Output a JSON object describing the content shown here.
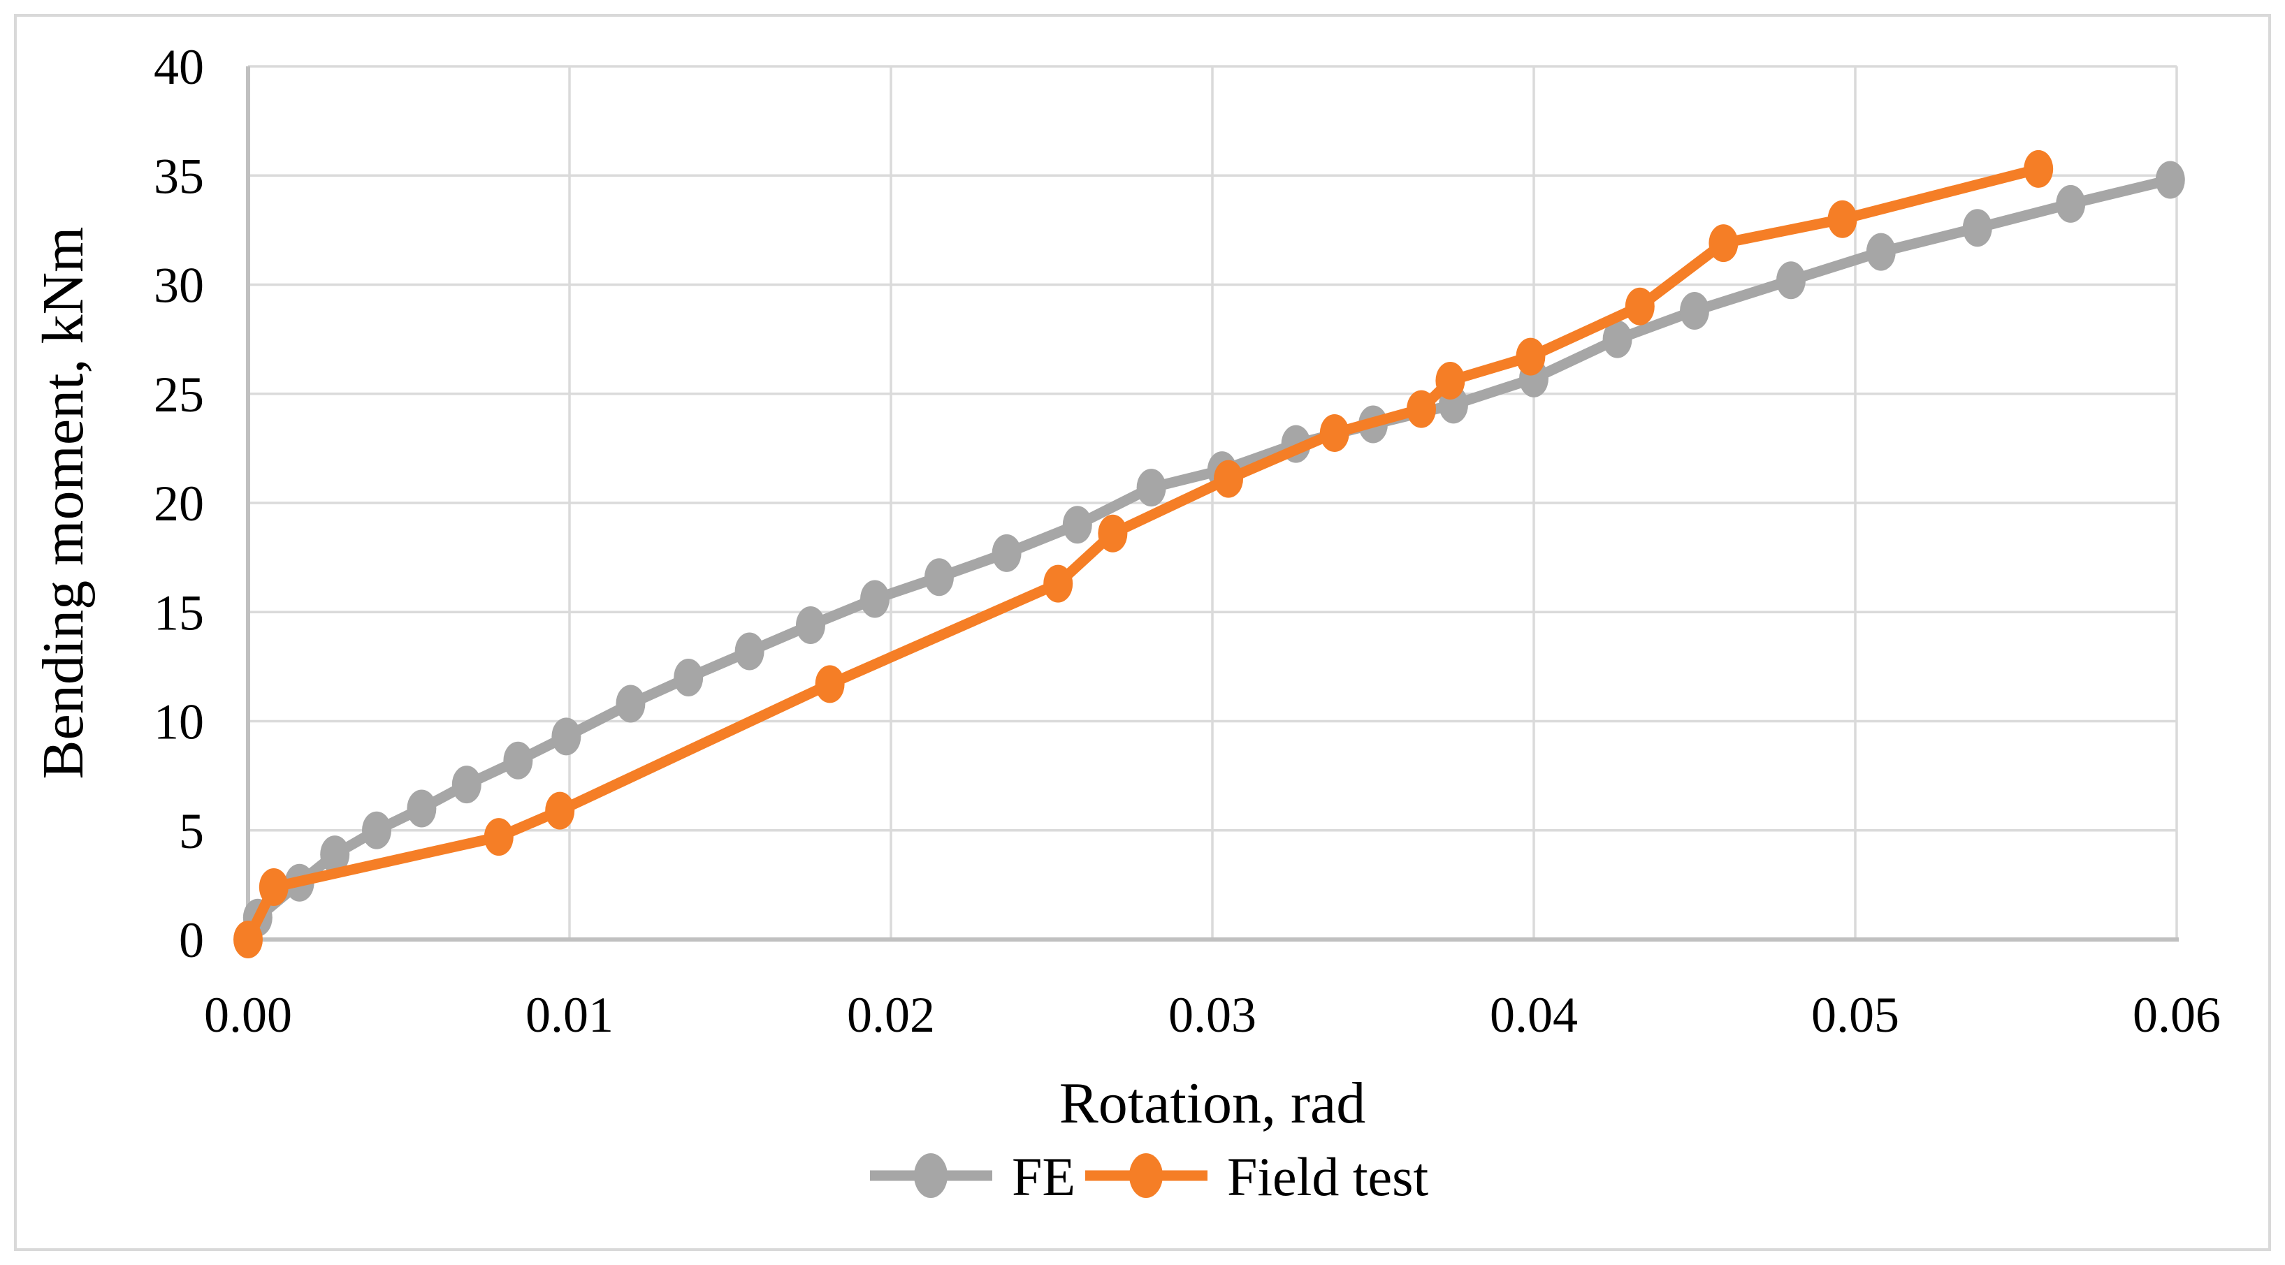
{
  "figure": {
    "background": "#FFFFFF",
    "border_color": "#D9D9D9",
    "gridline_color": "#DADADA",
    "axis_line_color": "#C0C0C0"
  },
  "chart_data": {
    "type": "line",
    "title": "",
    "xlabel": "Rotation, rad",
    "ylabel": "Bending moment, kNm",
    "xlim": [
      0,
      0.06
    ],
    "ylim": [
      0,
      40
    ],
    "x_tick_values": [
      0,
      0.01,
      0.02,
      0.03,
      0.04,
      0.05,
      0.06
    ],
    "x_tick_labels": [
      "0.00",
      "0.01",
      "0.02",
      "0.03",
      "0.04",
      "0.05",
      "0.06"
    ],
    "y_tick_values": [
      0,
      5,
      10,
      15,
      20,
      25,
      30,
      35,
      40
    ],
    "y_tick_labels": [
      "0",
      "5",
      "10",
      "15",
      "20",
      "25",
      "30",
      "35",
      "40"
    ],
    "grid": true,
    "legend_position": "bottom",
    "series": [
      {
        "name": "FE",
        "color": "#A6A6A6",
        "points": [
          [
            0.0003,
            1.0
          ],
          [
            0.0016,
            2.6
          ],
          [
            0.0027,
            3.9
          ],
          [
            0.004,
            5.0
          ],
          [
            0.0054,
            6.0
          ],
          [
            0.0068,
            7.1
          ],
          [
            0.0084,
            8.2
          ],
          [
            0.0099,
            9.3
          ],
          [
            0.0119,
            10.8
          ],
          [
            0.0137,
            12.0
          ],
          [
            0.0156,
            13.2
          ],
          [
            0.0175,
            14.4
          ],
          [
            0.0195,
            15.6
          ],
          [
            0.0215,
            16.6
          ],
          [
            0.0236,
            17.7
          ],
          [
            0.0258,
            19.0
          ],
          [
            0.0281,
            20.7
          ],
          [
            0.0303,
            21.5
          ],
          [
            0.0326,
            22.7
          ],
          [
            0.035,
            23.6
          ],
          [
            0.0375,
            24.5
          ],
          [
            0.04,
            25.7
          ],
          [
            0.0426,
            27.5
          ],
          [
            0.045,
            28.8
          ],
          [
            0.048,
            30.2
          ],
          [
            0.0508,
            31.5
          ],
          [
            0.0538,
            32.6
          ],
          [
            0.0567,
            33.7
          ],
          [
            0.0598,
            34.8
          ]
        ]
      },
      {
        "name": "Field test",
        "color": "#F57E26",
        "points": [
          [
            0.0,
            0.0
          ],
          [
            0.0008,
            2.4
          ],
          [
            0.0078,
            4.7
          ],
          [
            0.0097,
            5.9
          ],
          [
            0.0181,
            11.7
          ],
          [
            0.0252,
            16.3
          ],
          [
            0.0269,
            18.6
          ],
          [
            0.0305,
            21.1
          ],
          [
            0.0338,
            23.2
          ],
          [
            0.0365,
            24.3
          ],
          [
            0.0374,
            25.6
          ],
          [
            0.0399,
            26.7
          ],
          [
            0.0433,
            29.0
          ],
          [
            0.0459,
            31.9
          ],
          [
            0.0496,
            33.0
          ],
          [
            0.0557,
            35.3
          ]
        ]
      }
    ]
  }
}
